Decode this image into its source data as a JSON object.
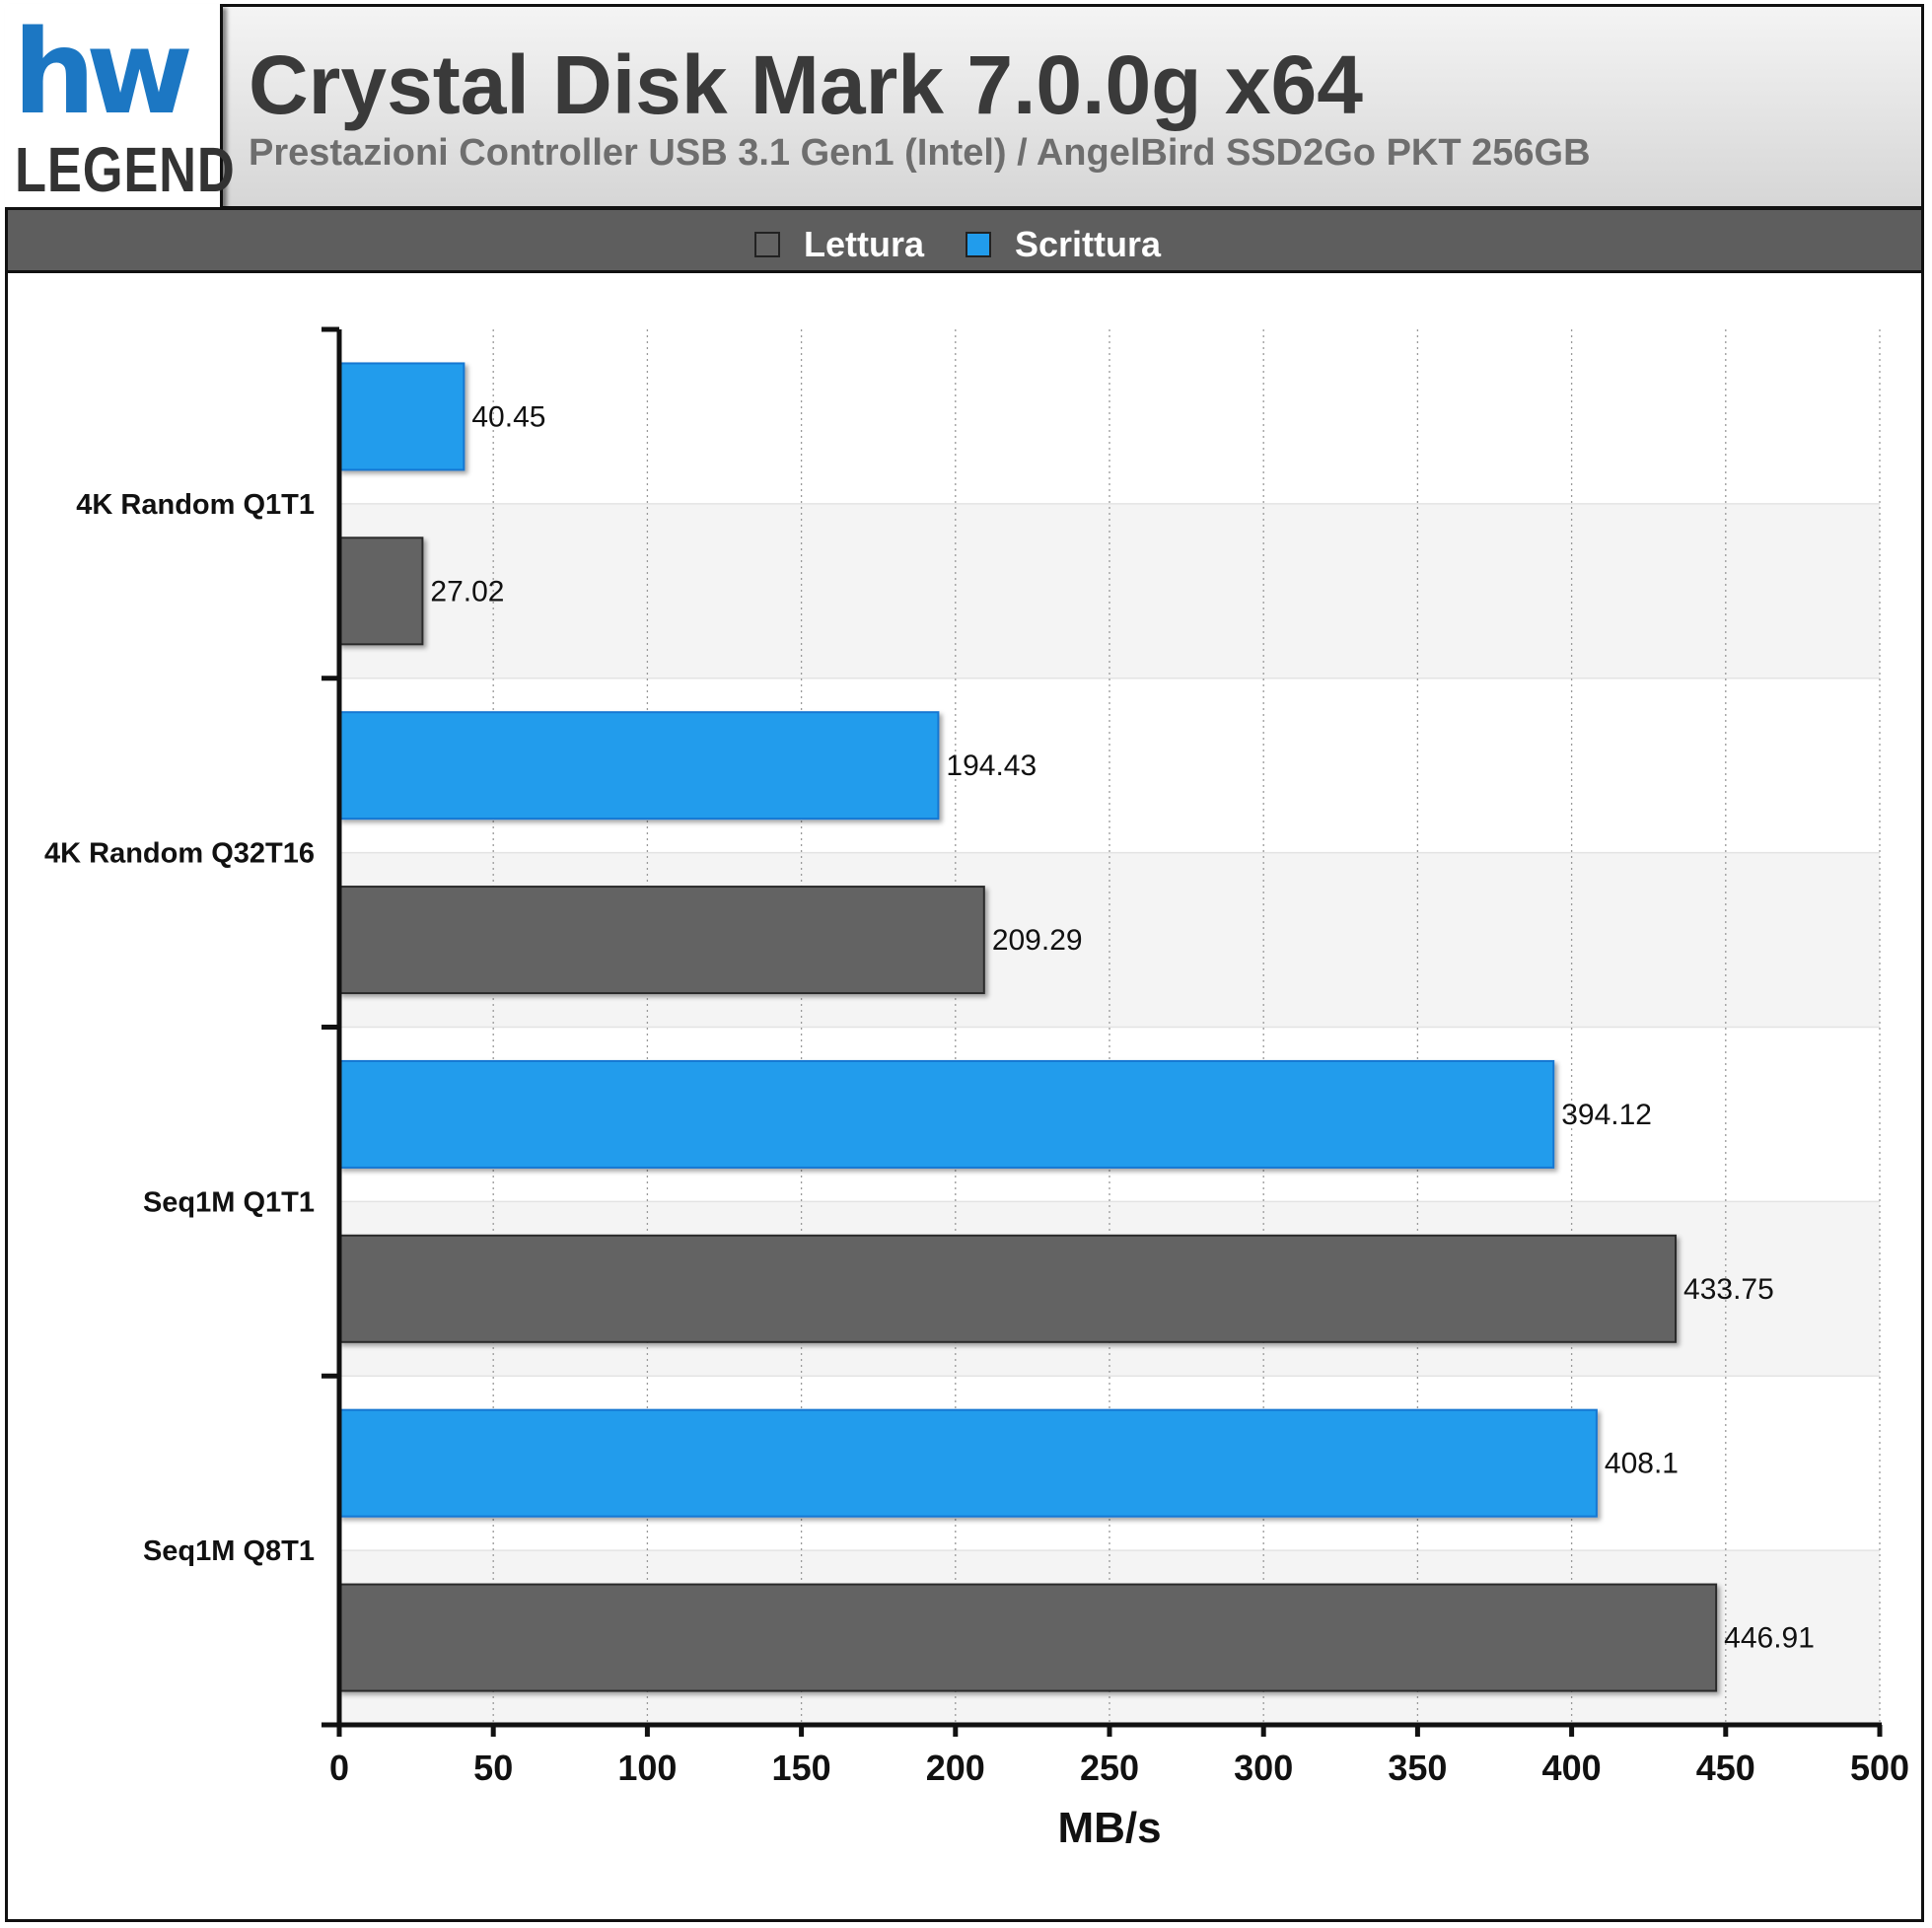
{
  "header": {
    "title": "Crystal Disk Mark 7.0.0g x64",
    "subtitle": "Prestazioni Controller USB 3.1 Gen1 (Intel) / AngelBird SSD2Go PKT 256GB",
    "logo_text_top": "hw",
    "logo_text_bottom": "LEGEND"
  },
  "legend": [
    {
      "label": "Lettura",
      "color": "#636363"
    },
    {
      "label": "Scrittura",
      "color": "#219cec"
    }
  ],
  "chart_data": {
    "type": "bar",
    "orientation": "horizontal",
    "categories": [
      "4K Random Q1T1",
      "4K Random Q32T16",
      "Seq1M Q1T1",
      "Seq1M Q8T1"
    ],
    "series": [
      {
        "name": "Scrittura",
        "color": "#219cec",
        "values": [
          40.45,
          194.43,
          394.12,
          408.1
        ],
        "labels": [
          "40.45",
          "194.43",
          "394.12",
          "408.1"
        ]
      },
      {
        "name": "Lettura",
        "color": "#636363",
        "values": [
          27.02,
          209.29,
          433.75,
          446.91
        ],
        "labels": [
          "27.02",
          "209.29",
          "433.75",
          "446.91"
        ]
      }
    ],
    "xlabel": "MB/s",
    "ylabel": "",
    "xlim": [
      0,
      500
    ],
    "xticks": [
      0,
      50,
      100,
      150,
      200,
      250,
      300,
      350,
      400,
      450,
      500
    ],
    "grid": true,
    "legend_position": "top"
  }
}
